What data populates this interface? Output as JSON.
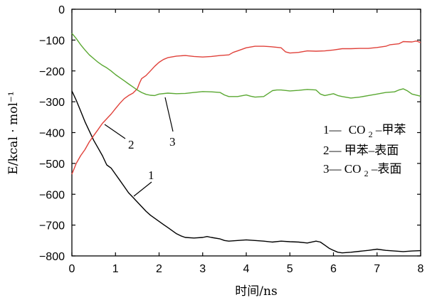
{
  "chart_data": {
    "type": "line",
    "xlabel": "时间/ns",
    "ylabel": "E/kcal · mol⁻¹",
    "xlim": [
      0,
      8
    ],
    "ylim": [
      -800,
      0
    ],
    "xticks": [
      0,
      1,
      2,
      3,
      4,
      5,
      6,
      7,
      8
    ],
    "yticks": [
      0,
      -100,
      -200,
      -300,
      -400,
      -500,
      -600,
      -700,
      -800
    ],
    "grid": false,
    "legend_position": "right",
    "legend": [
      {
        "number": "1—",
        "text": "CO",
        "sub": "2",
        "rest": "–甲苯"
      },
      {
        "number": "2—",
        "text": "甲苯–表面",
        "sub": "",
        "rest": ""
      },
      {
        "number": "3—",
        "text": "CO",
        "sub": "2",
        "rest": "–表面"
      }
    ],
    "colors": {
      "1": "#000000",
      "2": "#e0413a",
      "3": "#5aa832"
    },
    "series": [
      {
        "id": "1",
        "label": "1",
        "x": [
          0,
          0.1,
          0.2,
          0.3,
          0.4,
          0.5,
          0.6,
          0.7,
          0.8,
          0.9,
          1.0,
          1.1,
          1.2,
          1.3,
          1.4,
          1.5,
          1.6,
          1.7,
          1.8,
          1.9,
          2.0,
          2.1,
          2.2,
          2.3,
          2.4,
          2.5,
          2.6,
          2.8,
          3.0,
          3.1,
          3.2,
          3.4,
          3.5,
          3.6,
          3.8,
          4.0,
          4.2,
          4.4,
          4.6,
          4.8,
          5.0,
          5.2,
          5.4,
          5.6,
          5.7,
          5.8,
          5.9,
          6.0,
          6.1,
          6.2,
          6.4,
          6.6,
          6.8,
          7.0,
          7.2,
          7.4,
          7.6,
          7.8,
          8.0
        ],
        "y": [
          -265,
          -295,
          -330,
          -365,
          -395,
          -425,
          -450,
          -475,
          -505,
          -515,
          -535,
          -555,
          -575,
          -595,
          -610,
          -625,
          -640,
          -655,
          -668,
          -678,
          -688,
          -698,
          -708,
          -718,
          -728,
          -735,
          -740,
          -742,
          -740,
          -737,
          -740,
          -745,
          -750,
          -752,
          -750,
          -748,
          -750,
          -752,
          -755,
          -752,
          -754,
          -755,
          -758,
          -752,
          -755,
          -765,
          -775,
          -782,
          -788,
          -790,
          -788,
          -785,
          -782,
          -778,
          -782,
          -784,
          -786,
          -784,
          -783
        ]
      },
      {
        "id": "2",
        "label": "2",
        "x": [
          0,
          0.1,
          0.2,
          0.3,
          0.4,
          0.5,
          0.6,
          0.7,
          0.8,
          0.9,
          1.0,
          1.1,
          1.2,
          1.3,
          1.4,
          1.5,
          1.55,
          1.6,
          1.7,
          1.8,
          1.9,
          2.0,
          2.1,
          2.2,
          2.4,
          2.6,
          2.8,
          3.0,
          3.2,
          3.4,
          3.6,
          3.7,
          3.8,
          4.0,
          4.2,
          4.4,
          4.6,
          4.8,
          4.9,
          5.0,
          5.2,
          5.4,
          5.6,
          5.8,
          6.0,
          6.2,
          6.4,
          6.6,
          6.8,
          7.0,
          7.2,
          7.3,
          7.5,
          7.6,
          7.8,
          7.9,
          8.0
        ],
        "y": [
          -535,
          -500,
          -475,
          -455,
          -430,
          -410,
          -390,
          -370,
          -355,
          -340,
          -322,
          -305,
          -290,
          -280,
          -272,
          -258,
          -240,
          -225,
          -215,
          -200,
          -185,
          -172,
          -163,
          -157,
          -152,
          -150,
          -153,
          -155,
          -153,
          -150,
          -148,
          -140,
          -135,
          -125,
          -120,
          -120,
          -122,
          -125,
          -138,
          -142,
          -140,
          -135,
          -136,
          -135,
          -132,
          -128,
          -128,
          -127,
          -127,
          -124,
          -120,
          -115,
          -112,
          -105,
          -106,
          -103,
          -108
        ]
      },
      {
        "id": "3",
        "label": "3",
        "x": [
          0,
          0.1,
          0.2,
          0.3,
          0.4,
          0.5,
          0.6,
          0.7,
          0.8,
          0.9,
          1.0,
          1.1,
          1.2,
          1.3,
          1.4,
          1.5,
          1.6,
          1.7,
          1.8,
          1.9,
          2.0,
          2.2,
          2.4,
          2.6,
          2.8,
          3.0,
          3.2,
          3.4,
          3.5,
          3.6,
          3.8,
          4.0,
          4.1,
          4.2,
          4.4,
          4.6,
          4.7,
          4.8,
          5.0,
          5.2,
          5.4,
          5.6,
          5.7,
          5.8,
          6.0,
          6.1,
          6.2,
          6.4,
          6.6,
          6.8,
          7.0,
          7.2,
          7.4,
          7.5,
          7.6,
          7.7,
          7.8,
          8.0
        ],
        "y": [
          -78,
          -95,
          -115,
          -132,
          -148,
          -160,
          -172,
          -182,
          -190,
          -200,
          -212,
          -222,
          -232,
          -242,
          -252,
          -262,
          -270,
          -276,
          -279,
          -280,
          -275,
          -272,
          -274,
          -273,
          -270,
          -267,
          -268,
          -270,
          -278,
          -283,
          -283,
          -278,
          -282,
          -285,
          -283,
          -264,
          -262,
          -262,
          -265,
          -263,
          -260,
          -262,
          -275,
          -280,
          -274,
          -280,
          -283,
          -288,
          -285,
          -280,
          -275,
          -270,
          -268,
          -262,
          -258,
          -265,
          -275,
          -282
        ]
      }
    ],
    "callouts": [
      {
        "label": "1"
      },
      {
        "label": "2"
      },
      {
        "label": "3"
      }
    ]
  }
}
